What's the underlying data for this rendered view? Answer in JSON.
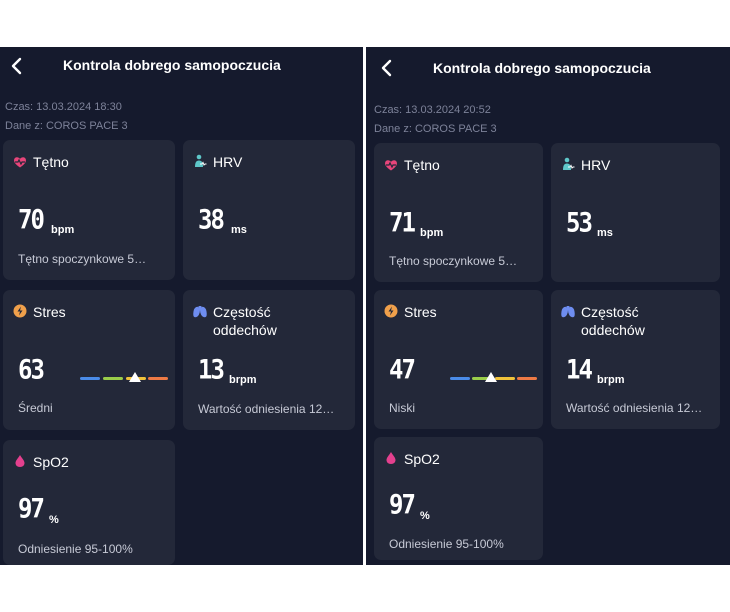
{
  "left": {
    "title": "Kontrola dobrego samopoczucia",
    "time": "Czas: 13.03.2024 18:30",
    "device": "Dane z: COROS PACE 3",
    "heart": {
      "label": "Tętno",
      "value": "70",
      "unit": "bpm",
      "sub": "Tętno spoczynkowe  5…"
    },
    "hrv": {
      "label": "HRV",
      "value": "38",
      "unit": "ms"
    },
    "stress": {
      "label": "Stres",
      "value": "63",
      "sub": "Średni",
      "level": 0.63
    },
    "breath": {
      "label1": "Częstość",
      "label2": "oddechów",
      "value": "13",
      "unit": "brpm",
      "sub": "Wartość odniesienia 12…"
    },
    "spo2": {
      "label": "SpO2",
      "value": "97",
      "unit": "%",
      "sub": "Odniesienie 95-100%"
    }
  },
  "right": {
    "title": "Kontrola dobrego samopoczucia",
    "time": "Czas: 13.03.2024 20:52",
    "device": "Dane z: COROS PACE 3",
    "heart": {
      "label": "Tętno",
      "value": "71",
      "unit": "bpm",
      "sub": "Tętno spoczynkowe  5…"
    },
    "hrv": {
      "label": "HRV",
      "value": "53",
      "unit": "ms"
    },
    "stress": {
      "label": "Stres",
      "value": "47",
      "sub": "Niski",
      "level": 0.47
    },
    "breath": {
      "label1": "Częstość",
      "label2": "oddechów",
      "value": "14",
      "unit": "brpm",
      "sub": "Wartość odniesienia 12…"
    },
    "spo2": {
      "label": "SpO2",
      "value": "97",
      "unit": "%",
      "sub": "Odniesienie 95-100%"
    }
  },
  "colors": {
    "background": "#151a2d",
    "card": "#232839",
    "heart_icon": "#e8457a",
    "hrv_icon": "#5ec7c9",
    "stress_icon": "#f0a04b",
    "breath_icon": "#6e8df0",
    "spo2_icon": "#e4408e",
    "scale_blue": "#4a8be8",
    "scale_green": "#9acd4a",
    "scale_yellow": "#f0c23a",
    "scale_orange": "#ee7a45"
  },
  "icons": {
    "back": "chevron-left-icon",
    "heart": "heart-pulse-icon",
    "hrv": "hrv-person-icon",
    "stress": "lightning-icon",
    "breath": "lungs-icon",
    "spo2": "drop-icon"
  }
}
